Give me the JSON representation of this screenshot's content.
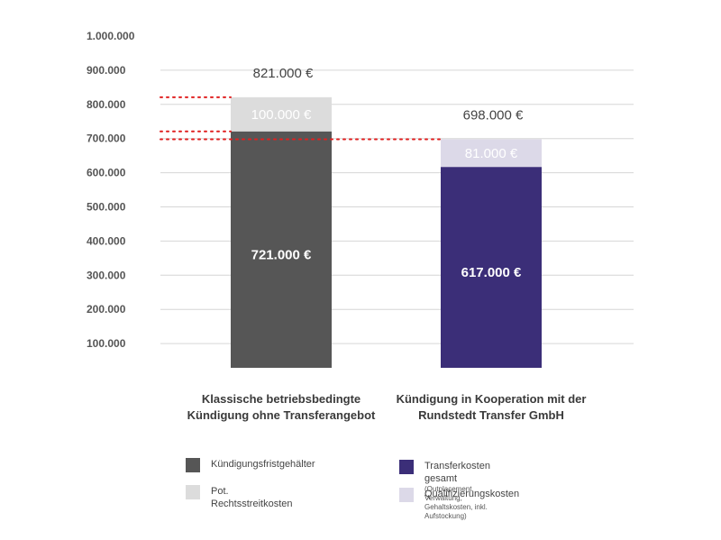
{
  "chart_data": {
    "type": "bar",
    "stacked": true,
    "ylim": [
      0,
      1000000
    ],
    "yticks": [
      {
        "value": 100000,
        "label": "100.000"
      },
      {
        "value": 200000,
        "label": "200.000"
      },
      {
        "value": 300000,
        "label": "300.000"
      },
      {
        "value": 400000,
        "label": "400.000"
      },
      {
        "value": 500000,
        "label": "500.000"
      },
      {
        "value": 600000,
        "label": "600.000"
      },
      {
        "value": 700000,
        "label": "700.000"
      },
      {
        "value": 800000,
        "label": "800.000"
      },
      {
        "value": 900000,
        "label": "900.000"
      },
      {
        "value": 1000000,
        "label": "1.000.000"
      }
    ],
    "grid": true,
    "categories": [
      {
        "label_lines": [
          "Klassische betriebsbedingte",
          "Kündigung ohne Transferangebot"
        ],
        "total": 821000,
        "total_label": "821.000 €",
        "segments": [
          {
            "series": "Kündigungsfristgehälter",
            "value": 721000,
            "label": "721.000 €",
            "color": "#565656",
            "bold": true
          },
          {
            "series": "Pot. Rechtsstreitkosten",
            "value": 100000,
            "label": "100.000 €",
            "color": "#dcdcdc",
            "bold": false
          }
        ]
      },
      {
        "label_lines": [
          "Kündigung in Kooperation mit der",
          "Rundstedt Transfer GmbH"
        ],
        "total": 698000,
        "total_label": "698.000 €",
        "segments": [
          {
            "series": "Transferkosten gesamt",
            "value": 617000,
            "label": "617.000 €",
            "color": "#3b2e78",
            "bold": true
          },
          {
            "series": "Qualifizierungskosten",
            "value": 81000,
            "label": "81.000 €",
            "color": "#dcd9e8",
            "bold": false
          }
        ]
      }
    ],
    "reference_lines": [
      {
        "value": 821000,
        "color": "#e02020",
        "style": "dotted"
      },
      {
        "value": 721000,
        "color": "#e02020",
        "style": "dotted"
      },
      {
        "value": 698000,
        "color": "#e02020",
        "style": "dotted"
      }
    ],
    "legend": [
      {
        "label": "Kündigungsfristgehälter",
        "sublabel": "",
        "color": "#565656"
      },
      {
        "label": "Transferkosten gesamt",
        "sublabel": "(Outplacement, Verwaltung, Gehaltskosten, inkl. Aufstockung)",
        "color": "#3b2e78"
      },
      {
        "label": "Pot. Rechtsstreitkosten",
        "sublabel": "",
        "color": "#dcdcdc"
      },
      {
        "label": "Qualifizierungskosten",
        "sublabel": "",
        "color": "#dcd9e8"
      }
    ],
    "legend_placement": "bottom"
  }
}
